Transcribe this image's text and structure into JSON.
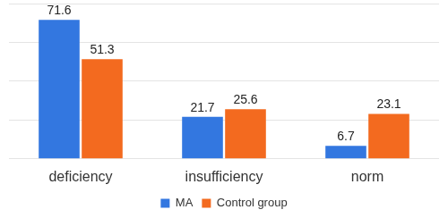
{
  "chart_data": {
    "type": "bar",
    "categories": [
      "deficiency",
      "insufficiency",
      "norm"
    ],
    "series": [
      {
        "name": "MA",
        "color": "#3377e0",
        "values": [
          71.6,
          21.7,
          6.7
        ]
      },
      {
        "name": "Control group",
        "color": "#f36a1f",
        "values": [
          51.3,
          25.6,
          23.1
        ]
      }
    ],
    "ylim": [
      0,
      80
    ],
    "yticks": [
      0,
      20,
      40,
      60,
      80
    ],
    "grid": true,
    "legend": "bottom",
    "data_labels": true,
    "tick_labels": "x"
  }
}
